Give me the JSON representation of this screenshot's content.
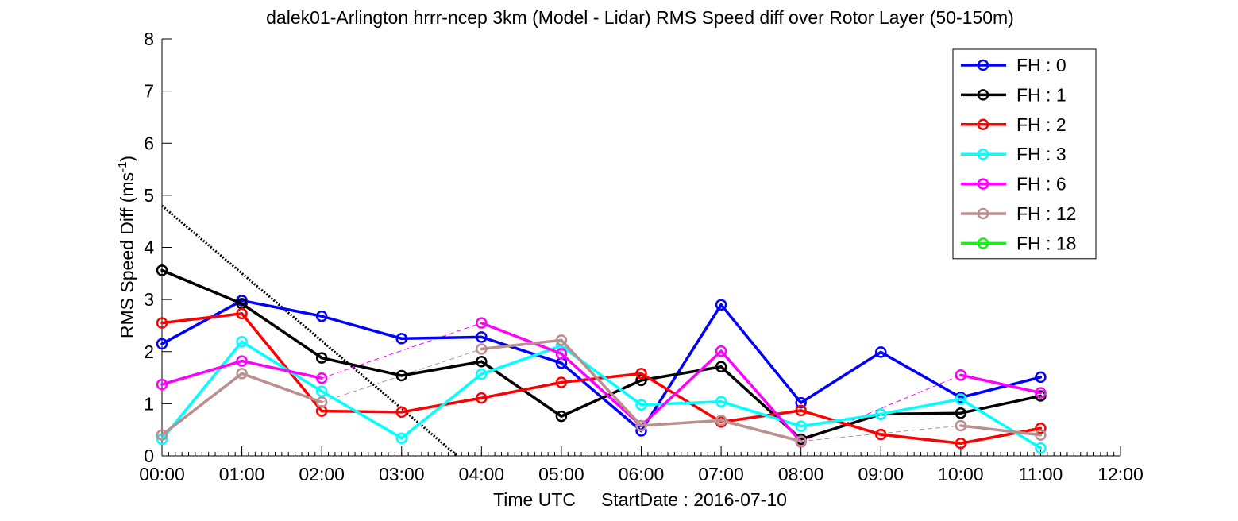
{
  "chart_data": {
    "type": "line",
    "title": "dalek01-Arlington hrrr-ncep 3km (Model - Lidar) RMS Speed diff over Rotor Layer (50-150m)",
    "xlabel": "Time UTC     StartDate : 2016-07-10",
    "ylabel_main": "RMS Speed Diff (ms",
    "ylabel_sup": "-1",
    "ylabel_close": ")",
    "x_tick_labels": [
      "00:00",
      "01:00",
      "02:00",
      "03:00",
      "04:00",
      "05:00",
      "06:00",
      "07:00",
      "08:00",
      "09:00",
      "10:00",
      "11:00",
      "12:00"
    ],
    "y_tick_labels": [
      "0",
      "1",
      "2",
      "3",
      "4",
      "5",
      "6",
      "7",
      "8"
    ],
    "xlim": [
      0,
      12
    ],
    "ylim": [
      0,
      8
    ],
    "legend_position": "top-right",
    "series": [
      {
        "name": "FH : 0",
        "color": "#0000ff",
        "x": [
          0,
          1,
          2,
          3,
          4,
          5,
          6,
          7,
          8,
          9,
          10,
          11
        ],
        "values": [
          2.15,
          2.98,
          2.68,
          2.25,
          2.28,
          1.78,
          0.48,
          2.9,
          1.02,
          1.99,
          1.12,
          1.51
        ]
      },
      {
        "name": "FH : 1",
        "color": "#000000",
        "x": [
          0,
          1,
          2,
          3,
          4,
          5,
          6,
          7,
          8,
          9,
          10,
          11
        ],
        "values": [
          3.56,
          2.92,
          1.88,
          1.54,
          1.81,
          0.76,
          1.45,
          1.71,
          0.32,
          0.8,
          0.82,
          1.15
        ]
      },
      {
        "name": "FH : 2",
        "color": "#ff0000",
        "x": [
          0,
          1,
          2,
          3,
          4,
          5,
          6,
          7,
          8,
          9,
          10,
          11
        ],
        "values": [
          2.55,
          2.73,
          0.86,
          0.84,
          1.11,
          1.41,
          1.58,
          0.65,
          0.87,
          0.41,
          0.24,
          0.53
        ]
      },
      {
        "name": "FH : 3",
        "color": "#00ffff",
        "x": [
          0,
          1,
          2,
          3,
          4,
          5,
          6,
          7,
          8,
          9,
          10,
          11
        ],
        "values": [
          0.32,
          2.19,
          1.24,
          0.34,
          1.57,
          2.11,
          0.98,
          1.04,
          0.57,
          0.8,
          1.09,
          0.15
        ]
      },
      {
        "name": "FH : 6",
        "color": "#ff00ff",
        "x": [
          0,
          1,
          2,
          4,
          5,
          6,
          7,
          8,
          10,
          11
        ],
        "values": [
          1.37,
          1.82,
          1.49,
          2.55,
          1.96,
          0.58,
          2.01,
          0.27,
          1.55,
          1.21
        ]
      },
      {
        "name": "FH : 12",
        "color": "#bc8f8f",
        "x": [
          0,
          1,
          2,
          4,
          5,
          6,
          7,
          8,
          10,
          11
        ],
        "values": [
          0.4,
          1.58,
          1.03,
          2.05,
          2.22,
          0.58,
          0.68,
          0.28,
          0.58,
          0.4
        ]
      },
      {
        "name": "FH : 18",
        "color": "#00ff00",
        "x": [],
        "values": []
      }
    ],
    "dashed_connectors": [
      {
        "color": "#ff00ff",
        "x": [
          2,
          4
        ],
        "values": [
          1.49,
          2.55
        ]
      },
      {
        "color": "#ff00ff",
        "x": [
          8,
          10
        ],
        "values": [
          0.27,
          1.55
        ]
      },
      {
        "color": "#bc8f8f",
        "x": [
          2,
          4
        ],
        "values": [
          1.03,
          2.05
        ]
      },
      {
        "color": "#bc8f8f",
        "x": [
          8,
          10
        ],
        "values": [
          0.28,
          0.58
        ]
      }
    ],
    "trend_line": {
      "color": "#000000",
      "style": "dotted",
      "x": [
        0,
        3.7
      ],
      "values": [
        4.8,
        0
      ]
    }
  }
}
